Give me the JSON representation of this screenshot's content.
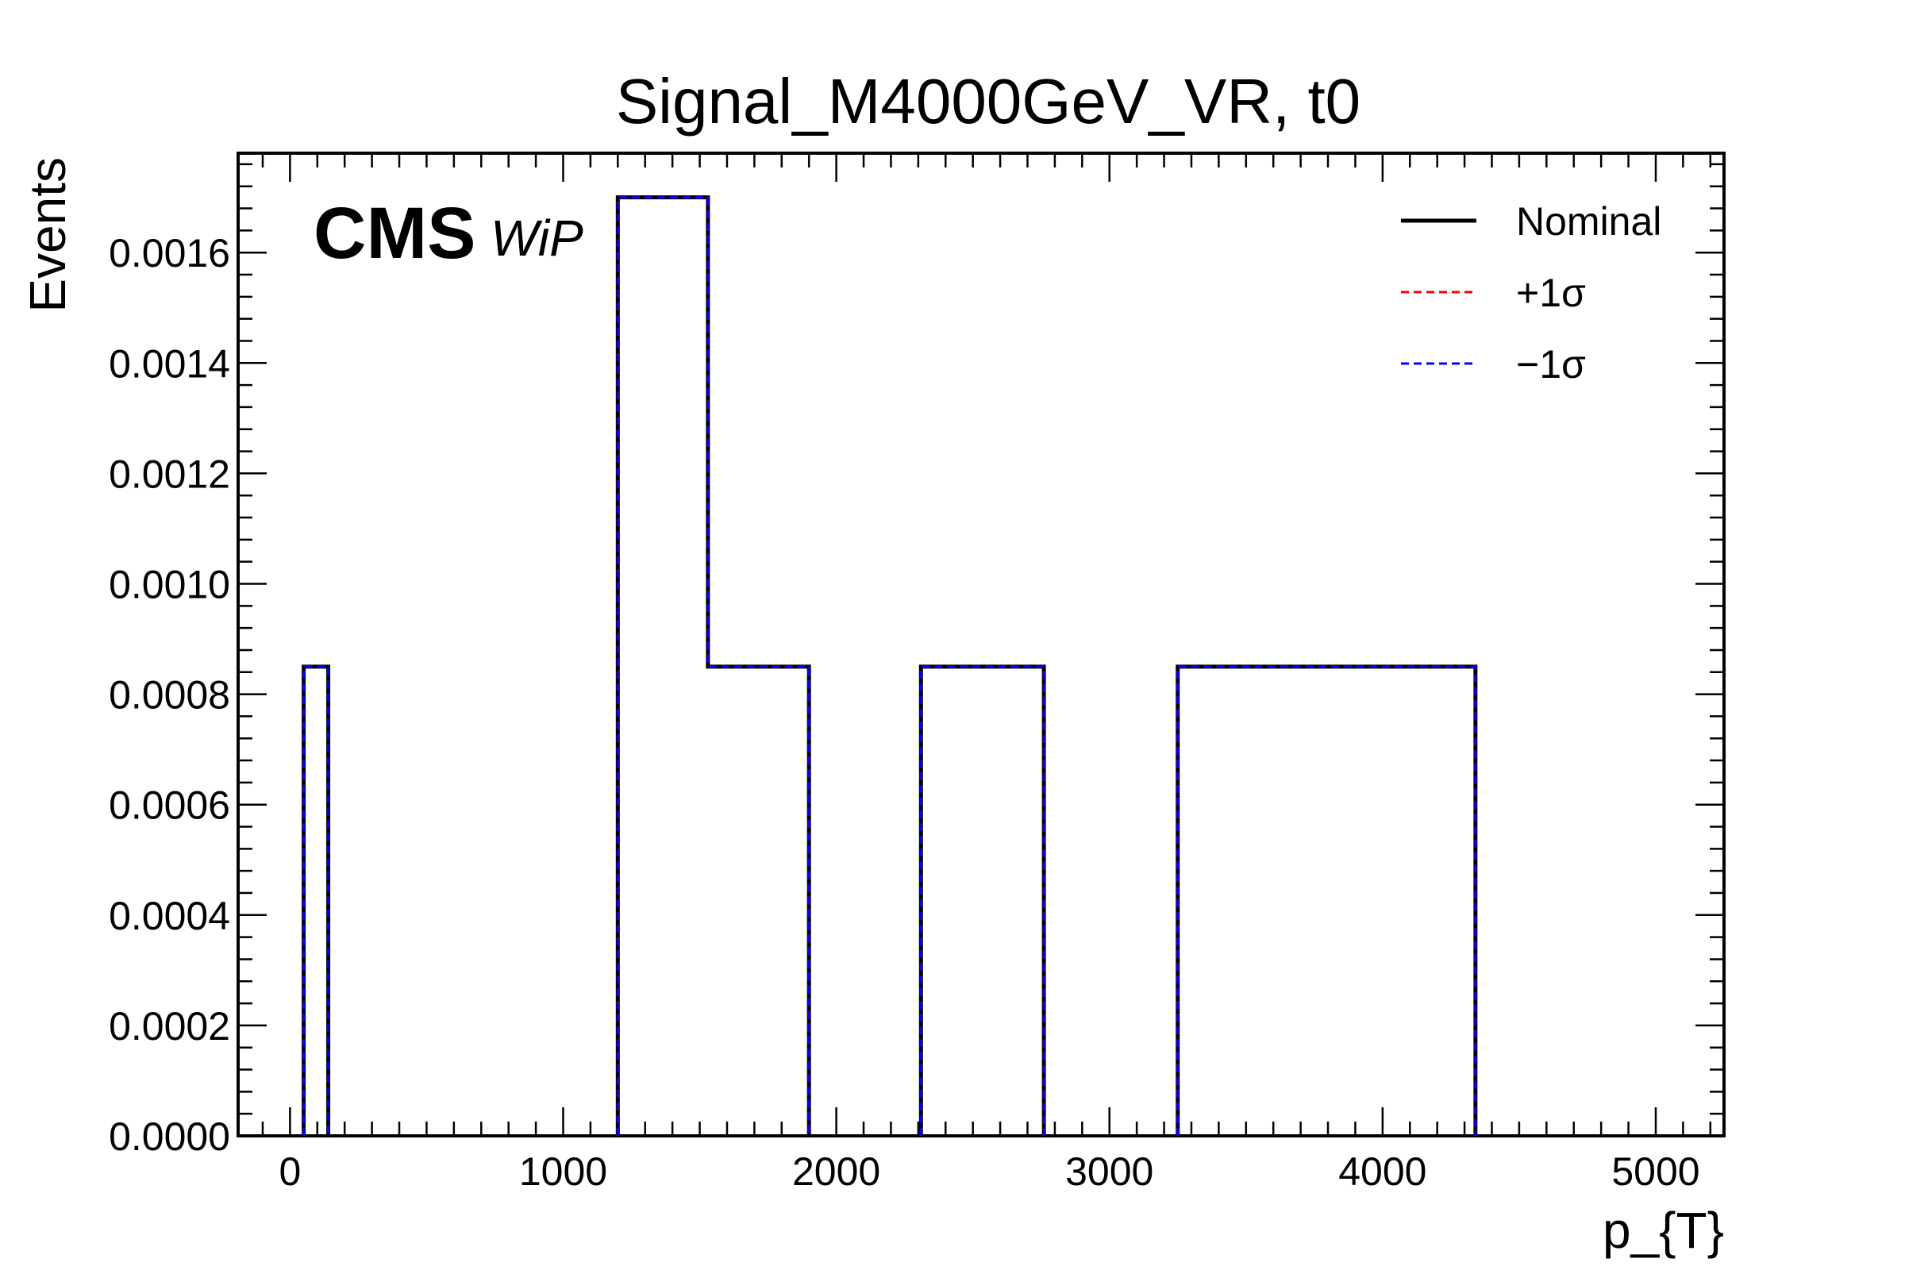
{
  "chart_data": {
    "type": "step",
    "title": "Signal_M4000GeV_VR, t0",
    "xlabel": "p_{T}",
    "ylabel": "Events",
    "experiment_label": "CMS",
    "experiment_sublabel": "WiP",
    "xlim": [
      -190,
      5250
    ],
    "ylim": [
      0,
      0.00178
    ],
    "x_ticks": [
      0,
      1000,
      2000,
      3000,
      4000,
      5000
    ],
    "x_tick_labels": [
      "0",
      "1000",
      "2000",
      "3000",
      "4000",
      "5000"
    ],
    "y_ticks": [
      0,
      0.0002,
      0.0004,
      0.0006,
      0.0008,
      0.001,
      0.0012,
      0.0014,
      0.0016
    ],
    "y_tick_labels": [
      "0.0000",
      "0.0002",
      "0.0004",
      "0.0006",
      "0.0008",
      "0.0010",
      "0.0012",
      "0.0014",
      "0.0016"
    ],
    "grid": false,
    "legend_position": "top-right",
    "bins": [
      {
        "low": 50,
        "high": 140,
        "value": 0.00085
      },
      {
        "low": 1200,
        "high": 1530,
        "value": 0.0017
      },
      {
        "low": 1530,
        "high": 1900,
        "value": 0.00085
      },
      {
        "low": 2310,
        "high": 2760,
        "value": 0.00085
      },
      {
        "low": 3250,
        "high": 4340,
        "value": 0.00085
      }
    ],
    "series": [
      {
        "name": "Nominal",
        "color": "#000000",
        "style": "solid"
      },
      {
        "name": "+1σ",
        "color": "#ff0000",
        "style": "dashed"
      },
      {
        "name": "−1σ",
        "color": "#0000ff",
        "style": "dashed"
      }
    ]
  }
}
